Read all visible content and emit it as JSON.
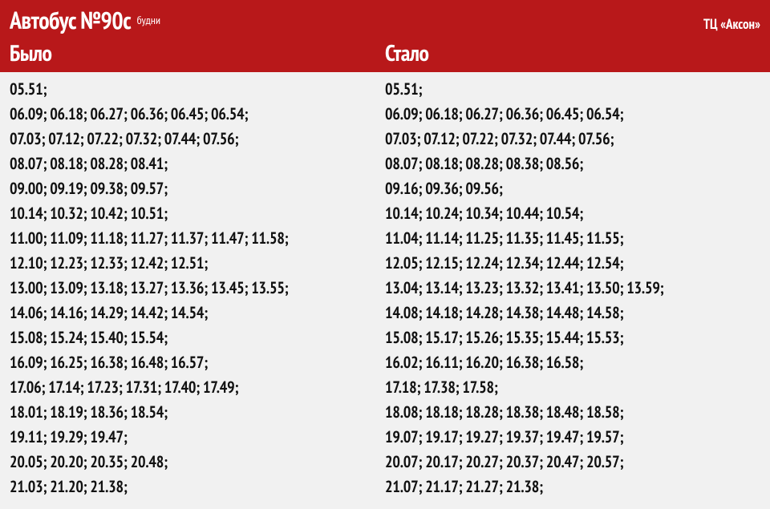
{
  "header": {
    "route_title": "Автобус №90с",
    "day_type": "будни",
    "stop_name": "ТЦ «Аксон»",
    "col_before": "Было",
    "col_after": "Стало"
  },
  "colors": {
    "header_bg": "#b8181a",
    "header_text": "#ffffff",
    "body_bg": "#f1f1f1",
    "body_text": "#111111"
  },
  "typography": {
    "title_fontsize": 30,
    "colheader_fontsize": 28,
    "row_fontsize": 20,
    "font_family": "PT Sans Narrow"
  },
  "before": [
    [
      "05.51"
    ],
    [
      "06.09",
      "06.18",
      "06.27",
      "06.36",
      "06.45",
      "06.54"
    ],
    [
      "07.03",
      "07.12",
      "07.22",
      "07.32",
      "07.44",
      "07.56"
    ],
    [
      "08.07",
      "08.18",
      "08.28",
      "08.41"
    ],
    [
      "09.00",
      "09.19",
      "09.38",
      "09.57"
    ],
    [
      "10.14",
      "10.32",
      "10.42",
      "10.51"
    ],
    [
      "11.00",
      "11.09",
      "11.18",
      "11.27",
      "11.37",
      "11.47",
      "11.58"
    ],
    [
      "12.10",
      "12.23",
      "12.33",
      "12.42",
      "12.51"
    ],
    [
      "13.00",
      "13.09",
      "13.18",
      "13.27",
      "13.36",
      "13.45",
      "13.55"
    ],
    [
      "14.06",
      "14.16",
      "14.29",
      "14.42",
      "14.54"
    ],
    [
      "15.08",
      "15.24",
      "15.40",
      "15.54"
    ],
    [
      "16.09",
      "16.25",
      "16.38",
      "16.48",
      "16.57"
    ],
    [
      "17.06",
      "17.14",
      "17.23",
      "17.31",
      "17.40",
      "17.49"
    ],
    [
      "18.01",
      "18.19",
      "18.36",
      "18.54"
    ],
    [
      "19.11",
      "19.29",
      "19.47"
    ],
    [
      "20.05",
      "20.20",
      "20.35",
      "20.48"
    ],
    [
      "21.03",
      "21.20",
      "21.38"
    ]
  ],
  "after": [
    [
      "05.51"
    ],
    [
      "06.09",
      "06.18",
      "06.27",
      "06.36",
      "06.45",
      "06.54"
    ],
    [
      "07.03",
      "07.12",
      "07.22",
      "07.32",
      "07.44",
      "07.56"
    ],
    [
      "08.07",
      "08.18",
      "08.28",
      "08.38",
      "08.56"
    ],
    [
      "09.16",
      "09.36",
      "09.56"
    ],
    [
      "10.14",
      "10.24",
      "10.34",
      "10.44",
      "10.54"
    ],
    [
      "11.04",
      "11.14",
      "11.25",
      "11.35",
      "11.45",
      "11.55"
    ],
    [
      "12.05",
      "12.15",
      "12.24",
      "12.34",
      "12.44",
      "12.54"
    ],
    [
      "13.04",
      "13.14",
      "13.23",
      "13.32",
      "13.41",
      "13.50",
      "13.59"
    ],
    [
      "14.08",
      "14.18",
      "14.28",
      "14.38",
      "14.48",
      "14.58"
    ],
    [
      "15.08",
      "15.17",
      "15.26",
      "15.35",
      "15.44",
      "15.53"
    ],
    [
      "16.02",
      "16.11",
      "16.20",
      "16.38",
      "16.58"
    ],
    [
      "17.18",
      "17.38",
      "17.58"
    ],
    [
      "18.08",
      "18.18",
      "18.28",
      "18.38",
      "18.48",
      "18.58"
    ],
    [
      "19.07",
      "19.17",
      "19.27",
      "19.37",
      "19.47",
      "19.57"
    ],
    [
      "20.07",
      "20.17",
      "20.27",
      "20.37",
      "20.47",
      "20.57"
    ],
    [
      "21.07",
      "21.17",
      "21.27",
      "21.38"
    ]
  ]
}
